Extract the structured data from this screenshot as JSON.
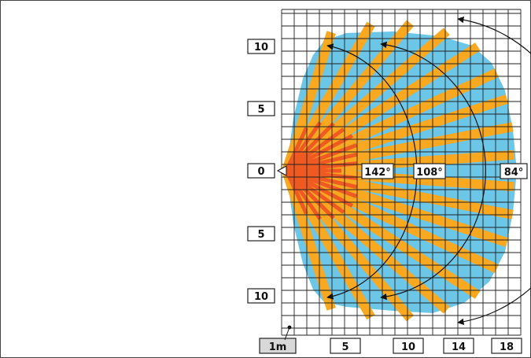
{
  "y_axis_labels": [
    "10",
    "5",
    "0",
    "5",
    "10"
  ],
  "x_axis_labels": [
    "1m",
    "5",
    "10",
    "14",
    "18"
  ],
  "angles": [
    "142°",
    "108°",
    "84°"
  ],
  "colors": {
    "coverage_blue": "#6cc6e8",
    "beam_orange": "#f9a81f",
    "beam_red": "#ef5a22",
    "grid_line": "#222222",
    "label_bg_gray": "#d8d8d8"
  },
  "icons": {
    "sensor": "triangle-sensor-icon",
    "scale_marker": "dot-icon"
  }
}
